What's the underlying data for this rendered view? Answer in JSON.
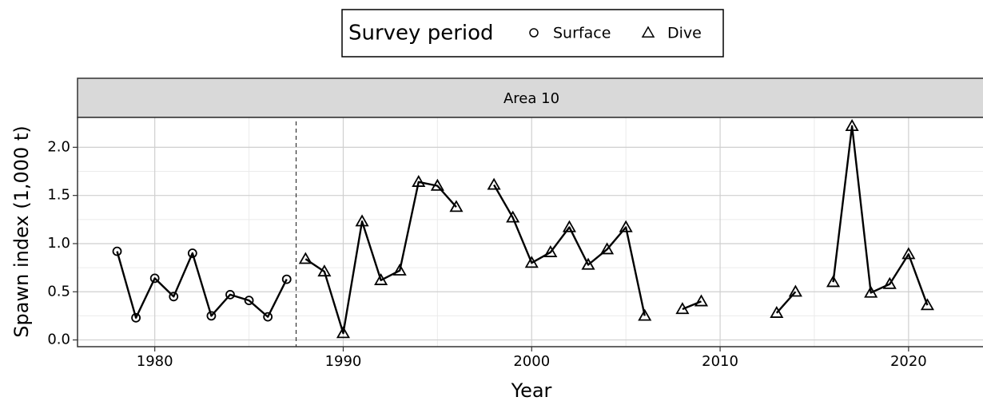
{
  "chart_data": {
    "type": "line",
    "legend_title": "Survey period",
    "panel_title": "Area 10",
    "xlabel": "Year",
    "ylabel": "Spawn index (1,000 t)",
    "xlim": [
      1975.9,
      2023.95
    ],
    "ylim": [
      -0.07,
      2.31
    ],
    "xticks": [
      1980,
      1990,
      2000,
      2010,
      2020
    ],
    "minor_xticks": [
      1985,
      1995,
      2005,
      2015
    ],
    "yticks": [
      {
        "value": 0,
        "label": "0.0"
      },
      {
        "value": 0.5,
        "label": "0.5"
      },
      {
        "value": 1,
        "label": "1.0"
      },
      {
        "value": 1.5,
        "label": "1.5"
      },
      {
        "value": 2,
        "label": "2.0"
      }
    ],
    "minor_yticks": [
      0.25,
      0.75,
      1.25,
      1.75
    ],
    "grid": true,
    "vline": 1987.5,
    "series": [
      {
        "name": "Surface",
        "marker": "circle",
        "color": "#000000",
        "x": [
          1978,
          1979,
          1980,
          1981,
          1982,
          1983,
          1984,
          1985,
          1986,
          1987
        ],
        "values": [
          0.92,
          0.23,
          0.64,
          0.45,
          0.9,
          0.25,
          0.47,
          0.41,
          0.24,
          0.63
        ]
      },
      {
        "name": "Dive",
        "marker": "triangle",
        "color": "#000000",
        "x": [
          1988,
          1989,
          1990,
          1991,
          1992,
          1993,
          1994,
          1995,
          1996,
          1997,
          1998,
          1999,
          2000,
          2001,
          2002,
          2003,
          2004,
          2005,
          2006,
          2007,
          2008,
          2009,
          2010,
          2011,
          2012,
          2013,
          2014,
          2015,
          2016,
          2017,
          2018,
          2019,
          2020,
          2021
        ],
        "values": [
          0.84,
          0.71,
          0.07,
          1.23,
          0.62,
          0.72,
          1.64,
          1.6,
          1.38,
          null,
          1.61,
          1.27,
          0.8,
          0.91,
          1.17,
          0.78,
          0.94,
          1.17,
          0.25,
          null,
          0.32,
          0.4,
          null,
          null,
          null,
          0.28,
          0.5,
          null,
          0.6,
          2.22,
          0.49,
          0.58,
          0.89,
          0.36
        ]
      }
    ]
  }
}
